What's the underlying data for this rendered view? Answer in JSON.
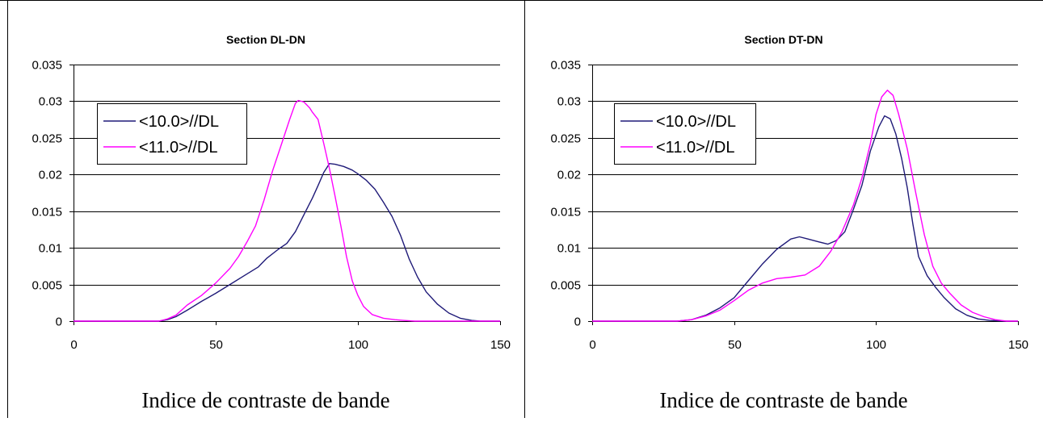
{
  "colors": {
    "series1": "#1f1a78",
    "series2": "#ff00ff",
    "grid": "#000000",
    "frame": "#000000"
  },
  "chart_data": [
    {
      "type": "line",
      "title": "Section DL-DN",
      "xlabel": "Indice de contraste de bande",
      "ylabel": "",
      "xlim": [
        0,
        150
      ],
      "ylim": [
        0,
        0.035
      ],
      "xticks": [
        "0",
        "50",
        "100",
        "150"
      ],
      "yticks": [
        "0",
        "0.005",
        "0.01",
        "0.015",
        "0.02",
        "0.025",
        "0.03",
        "0.035"
      ],
      "grid": "horizontal",
      "legend_position": "top-left",
      "series": [
        {
          "name": "<10.0>//DL",
          "color": "#1f1a78",
          "points": [
            [
              0,
              0
            ],
            [
              30,
              0
            ],
            [
              33,
              0.0002
            ],
            [
              36,
              0.0006
            ],
            [
              40,
              0.0015
            ],
            [
              45,
              0.0027
            ],
            [
              50,
              0.0038
            ],
            [
              55,
              0.005
            ],
            [
              60,
              0.0062
            ],
            [
              65,
              0.0074
            ],
            [
              68,
              0.0086
            ],
            [
              72,
              0.0098
            ],
            [
              75,
              0.0106
            ],
            [
              78,
              0.0122
            ],
            [
              81,
              0.0145
            ],
            [
              84,
              0.0168
            ],
            [
              86,
              0.0185
            ],
            [
              88,
              0.0203
            ],
            [
              90,
              0.0215
            ],
            [
              92,
              0.0214
            ],
            [
              95,
              0.0211
            ],
            [
              98,
              0.0206
            ],
            [
              100,
              0.0201
            ],
            [
              103,
              0.0192
            ],
            [
              106,
              0.018
            ],
            [
              109,
              0.0162
            ],
            [
              112,
              0.0143
            ],
            [
              115,
              0.0117
            ],
            [
              118,
              0.0085
            ],
            [
              121,
              0.006
            ],
            [
              124,
              0.004
            ],
            [
              128,
              0.0023
            ],
            [
              132,
              0.0011
            ],
            [
              136,
              0.0004
            ],
            [
              140,
              0.0001
            ],
            [
              143,
              0
            ],
            [
              150,
              0
            ]
          ]
        },
        {
          "name": "<11.0>//DL",
          "color": "#ff00ff",
          "points": [
            [
              0,
              0
            ],
            [
              30,
              0
            ],
            [
              33,
              0.0003
            ],
            [
              36,
              0.0008
            ],
            [
              40,
              0.0022
            ],
            [
              45,
              0.0035
            ],
            [
              50,
              0.0052
            ],
            [
              55,
              0.0072
            ],
            [
              58,
              0.0088
            ],
            [
              61,
              0.0108
            ],
            [
              64,
              0.013
            ],
            [
              67,
              0.0165
            ],
            [
              70,
              0.0205
            ],
            [
              73,
              0.024
            ],
            [
              76,
              0.0275
            ],
            [
              78,
              0.0297
            ],
            [
              79,
              0.0301
            ],
            [
              81,
              0.0299
            ],
            [
              83,
              0.0291
            ],
            [
              84,
              0.0285
            ],
            [
              86,
              0.0275
            ],
            [
              88,
              0.0242
            ],
            [
              90,
              0.0208
            ],
            [
              92,
              0.017
            ],
            [
              94,
              0.013
            ],
            [
              96,
              0.0088
            ],
            [
              98,
              0.0055
            ],
            [
              100,
              0.0035
            ],
            [
              102,
              0.002
            ],
            [
              105,
              0.0009
            ],
            [
              109,
              0.0004
            ],
            [
              113,
              0.0002
            ],
            [
              116,
              0.0001
            ],
            [
              120,
              0
            ],
            [
              150,
              0
            ]
          ]
        }
      ]
    },
    {
      "type": "line",
      "title": "Section DT-DN",
      "xlabel": "Indice de contraste de bande",
      "ylabel": "",
      "xlim": [
        0,
        150
      ],
      "ylim": [
        0,
        0.035
      ],
      "xticks": [
        "0",
        "50",
        "100",
        "150"
      ],
      "yticks": [
        "0",
        "0.005",
        "0.01",
        "0.015",
        "0.02",
        "0.025",
        "0.03",
        "0.035"
      ],
      "grid": "horizontal",
      "legend_position": "top-left",
      "series": [
        {
          "name": "<10.0>//DL",
          "color": "#1f1a78",
          "points": [
            [
              0,
              0
            ],
            [
              30,
              0
            ],
            [
              35,
              0.0002
            ],
            [
              40,
              0.0008
            ],
            [
              45,
              0.0018
            ],
            [
              50,
              0.0032
            ],
            [
              55,
              0.0055
            ],
            [
              60,
              0.0078
            ],
            [
              65,
              0.0098
            ],
            [
              70,
              0.0112
            ],
            [
              73,
              0.0115
            ],
            [
              76,
              0.0112
            ],
            [
              80,
              0.0108
            ],
            [
              83,
              0.0105
            ],
            [
              86,
              0.011
            ],
            [
              89,
              0.0122
            ],
            [
              92,
              0.0152
            ],
            [
              95,
              0.0185
            ],
            [
              98,
              0.0232
            ],
            [
              101,
              0.0265
            ],
            [
              103,
              0.028
            ],
            [
              105,
              0.0276
            ],
            [
              107,
              0.0255
            ],
            [
              109,
              0.0222
            ],
            [
              111,
              0.0182
            ],
            [
              113,
              0.0132
            ],
            [
              115,
              0.0088
            ],
            [
              118,
              0.0062
            ],
            [
              121,
              0.0046
            ],
            [
              124,
              0.0032
            ],
            [
              128,
              0.0017
            ],
            [
              132,
              0.0008
            ],
            [
              136,
              0.0003
            ],
            [
              140,
              0.0001
            ],
            [
              145,
              0
            ],
            [
              150,
              0
            ]
          ]
        },
        {
          "name": "<11.0>//DL",
          "color": "#ff00ff",
          "points": [
            [
              0,
              0
            ],
            [
              30,
              0
            ],
            [
              35,
              0.0002
            ],
            [
              40,
              0.0007
            ],
            [
              45,
              0.0015
            ],
            [
              50,
              0.0028
            ],
            [
              55,
              0.0042
            ],
            [
              60,
              0.0052
            ],
            [
              65,
              0.0058
            ],
            [
              70,
              0.006
            ],
            [
              75,
              0.0063
            ],
            [
              80,
              0.0075
            ],
            [
              84,
              0.0095
            ],
            [
              88,
              0.0122
            ],
            [
              92,
              0.0158
            ],
            [
              95,
              0.0195
            ],
            [
              98,
              0.0242
            ],
            [
              100,
              0.0282
            ],
            [
              102,
              0.0306
            ],
            [
              104,
              0.0315
            ],
            [
              106,
              0.0308
            ],
            [
              108,
              0.0282
            ],
            [
              111,
              0.0235
            ],
            [
              114,
              0.0175
            ],
            [
              117,
              0.0118
            ],
            [
              120,
              0.0075
            ],
            [
              123,
              0.0052
            ],
            [
              126,
              0.0038
            ],
            [
              130,
              0.0022
            ],
            [
              134,
              0.0012
            ],
            [
              138,
              0.0006
            ],
            [
              142,
              0.0002
            ],
            [
              146,
              0
            ],
            [
              150,
              0
            ]
          ]
        }
      ]
    }
  ]
}
